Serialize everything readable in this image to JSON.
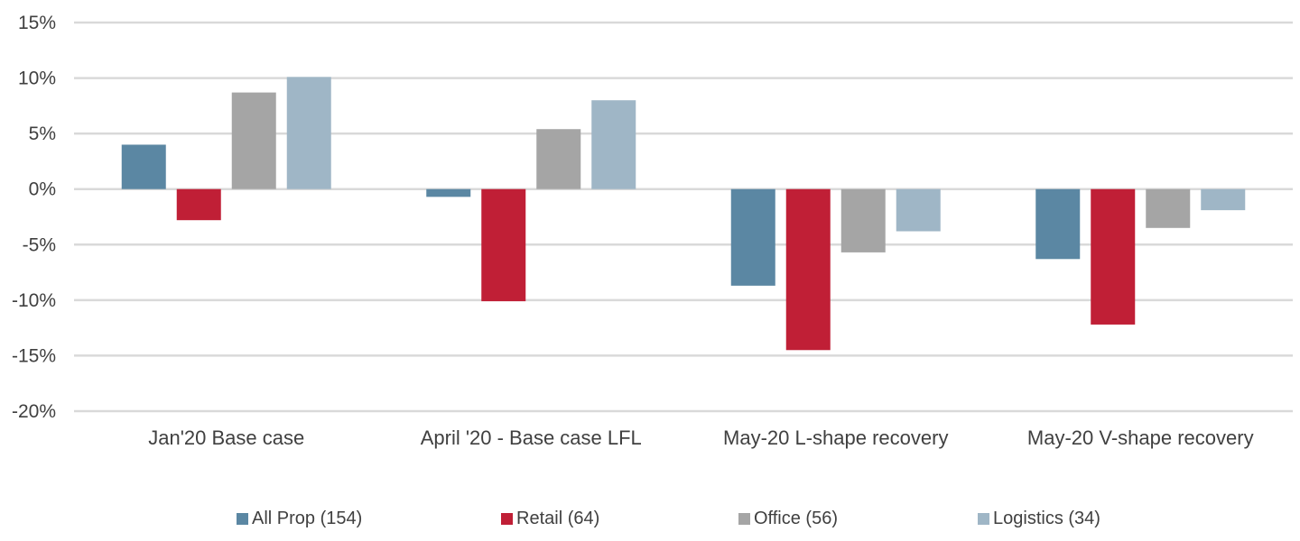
{
  "chart_data": {
    "type": "bar",
    "categories": [
      "Jan'20 Base case",
      "April '20 - Base case LFL",
      "May-20 L-shape recovery",
      "May-20 V-shape recovery"
    ],
    "series": [
      {
        "name": "All Prop (154)",
        "color": "#5b87a3",
        "values": [
          4.0,
          -0.7,
          -8.7,
          -6.3
        ]
      },
      {
        "name": "Retail (64)",
        "color": "#c01f36",
        "values": [
          -2.8,
          -10.1,
          -14.5,
          -12.2
        ]
      },
      {
        "name": "Office (56)",
        "color": "#a5a5a5",
        "values": [
          8.7,
          5.4,
          -5.7,
          -3.5
        ]
      },
      {
        "name": "Logistics (34)",
        "color": "#9fb6c6",
        "values": [
          10.1,
          8.0,
          -3.8,
          -1.9
        ]
      }
    ],
    "yticks": [
      "15%",
      "10%",
      "5%",
      "0%",
      "-5%",
      "-10%",
      "-15%",
      "-20%"
    ],
    "ylim": [
      -20,
      15
    ],
    "grid": true,
    "legend_position": "bottom",
    "title": "",
    "xlabel": "",
    "ylabel": ""
  }
}
